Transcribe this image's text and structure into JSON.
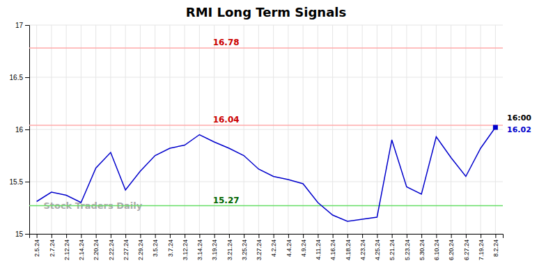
{
  "chart_data": {
    "type": "line",
    "title": "RMI Long Term Signals",
    "watermark": "Stock Traders Daily",
    "categories": [
      "2.5.24",
      "2.7.24",
      "2.12.24",
      "2.14.24",
      "2.20.24",
      "2.22.24",
      "2.27.24",
      "2.29.24",
      "3.5.24",
      "3.7.24",
      "3.12.24",
      "3.14.24",
      "3.19.24",
      "3.21.24",
      "3.25.24",
      "3.27.24",
      "4.2.24",
      "4.4.24",
      "4.9.24",
      "4.11.24",
      "4.16.24",
      "4.18.24",
      "4.23.24",
      "4.25.24",
      "5.21.24",
      "5.23.24",
      "5.30.24",
      "6.10.24",
      "6.20.24",
      "6.27.24",
      "7.19.24",
      "8.2.24"
    ],
    "values": [
      15.31,
      15.4,
      15.37,
      15.3,
      15.63,
      15.78,
      15.42,
      15.6,
      15.75,
      15.82,
      15.85,
      15.95,
      15.88,
      15.82,
      15.75,
      15.62,
      15.55,
      15.52,
      15.48,
      15.3,
      15.18,
      15.12,
      15.14,
      15.16,
      15.9,
      15.45,
      15.38,
      15.93,
      15.73,
      15.55,
      15.82,
      16.02
    ],
    "color": "#0000cc",
    "marker": "square",
    "ylim": [
      15,
      17
    ],
    "yticks": [
      15,
      15.5,
      16,
      16.5,
      17
    ],
    "grid": true,
    "reference_lines": [
      {
        "value": 16.78,
        "label": "16.78",
        "color": "#ffaaaa",
        "label_color": "#cc0000"
      },
      {
        "value": 16.04,
        "label": "16.04",
        "color": "#ffaaaa",
        "label_color": "#cc0000"
      },
      {
        "value": 15.27,
        "label": "15.27",
        "color": "#66dd66",
        "label_color": "#006600"
      }
    ],
    "annotations": [
      {
        "text": "16:00",
        "color": "#000000"
      },
      {
        "text": "16.02",
        "color": "#0000cc"
      }
    ]
  }
}
